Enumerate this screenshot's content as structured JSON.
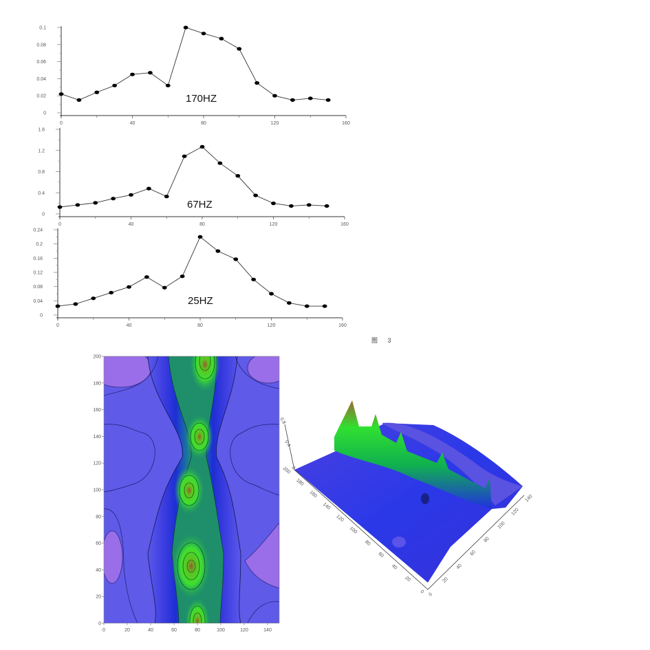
{
  "figure": {
    "caption": "图 3"
  },
  "chart_data": [
    {
      "type": "line",
      "title": "170HZ",
      "xlabel": "",
      "ylabel": "",
      "x": [
        0,
        10,
        20,
        30,
        40,
        50,
        60,
        70,
        80,
        90,
        100,
        110,
        120,
        130,
        140,
        150
      ],
      "values": [
        0.022,
        0.015,
        0.024,
        0.032,
        0.045,
        0.047,
        0.032,
        0.1,
        0.093,
        0.087,
        0.075,
        0.035,
        0.02,
        0.015,
        0.017,
        0.015
      ],
      "xlim": [
        0,
        160
      ],
      "ylim": [
        0,
        0.1
      ],
      "xticks": [
        "0",
        "40",
        "80",
        "120",
        "160"
      ],
      "yticks": [
        "0",
        "0.02",
        "0.04",
        "0.06",
        "0.08",
        "0.1"
      ],
      "grid": false,
      "markers": "filled-circle",
      "annotation": "170HZ"
    },
    {
      "type": "line",
      "title": "67HZ",
      "xlabel": "",
      "ylabel": "",
      "x": [
        0,
        10,
        20,
        30,
        40,
        50,
        60,
        70,
        80,
        90,
        100,
        110,
        120,
        130,
        140,
        150
      ],
      "values": [
        0.13,
        0.17,
        0.21,
        0.29,
        0.36,
        0.48,
        0.33,
        1.09,
        1.27,
        0.96,
        0.72,
        0.35,
        0.2,
        0.15,
        0.17,
        0.15
      ],
      "xlim": [
        0,
        160
      ],
      "ylim": [
        0,
        1.6
      ],
      "xticks": [
        "0",
        "40",
        "80",
        "120",
        "160"
      ],
      "yticks": [
        "0",
        "0.4",
        "0.8",
        "1.2",
        "1.6"
      ],
      "grid": false,
      "markers": "filled-circle",
      "annotation": "67HZ"
    },
    {
      "type": "line",
      "title": "25HZ",
      "xlabel": "",
      "ylabel": "",
      "x": [
        0,
        10,
        20,
        30,
        40,
        50,
        60,
        70,
        80,
        90,
        100,
        110,
        120,
        130,
        140,
        150
      ],
      "values": [
        0.025,
        0.031,
        0.047,
        0.063,
        0.079,
        0.107,
        0.077,
        0.109,
        0.22,
        0.18,
        0.157,
        0.1,
        0.06,
        0.034,
        0.025,
        0.025
      ],
      "xlim": [
        0,
        160
      ],
      "ylim": [
        0,
        0.24
      ],
      "xticks": [
        "0",
        "40",
        "80",
        "120",
        "160"
      ],
      "yticks": [
        "0",
        "0.04",
        "0.08",
        "0.12",
        "0.16",
        "0.2",
        "0.24"
      ],
      "grid": false,
      "markers": "filled-circle",
      "annotation": "25HZ"
    },
    {
      "type": "heatmap",
      "subtype": "filled-contour",
      "title": "",
      "xlim": [
        0,
        150
      ],
      "ylim": [
        0,
        200
      ],
      "xticks": [
        "0",
        "20",
        "40",
        "60",
        "80",
        "100",
        "120",
        "140"
      ],
      "yticks": [
        "0",
        "20",
        "40",
        "60",
        "80",
        "100",
        "120",
        "140",
        "160",
        "180",
        "200"
      ],
      "colormap": [
        "#a070e8",
        "#6a5ee8",
        "#4b48e0",
        "#2a30d8",
        "#1040c8",
        "#1a8a8a",
        "#20b050",
        "#40e020",
        "#8a6a30"
      ],
      "peaks": [
        {
          "x": 88,
          "y": 196
        },
        {
          "x": 83,
          "y": 150
        },
        {
          "x": 72,
          "y": 100
        },
        {
          "x": 75,
          "y": 50
        },
        {
          "x": 80,
          "y": 5
        }
      ],
      "ridge_center_x": 78
    },
    {
      "type": "surface3d",
      "title": "",
      "x_axis_ticks": [
        "0",
        "20",
        "40",
        "60",
        "80",
        "100",
        "120",
        "140",
        "160",
        "180",
        "200"
      ],
      "y_axis_ticks": [
        "0",
        "20",
        "40",
        "60",
        "80",
        "100",
        "120",
        "140"
      ],
      "z_axis_ticks": [
        "0",
        "0.4",
        "0.8"
      ],
      "colormap": [
        "#5a4ce0",
        "#2030e8",
        "#10c040",
        "#30f030",
        "#8a6a30"
      ],
      "peaks": 5
    }
  ]
}
